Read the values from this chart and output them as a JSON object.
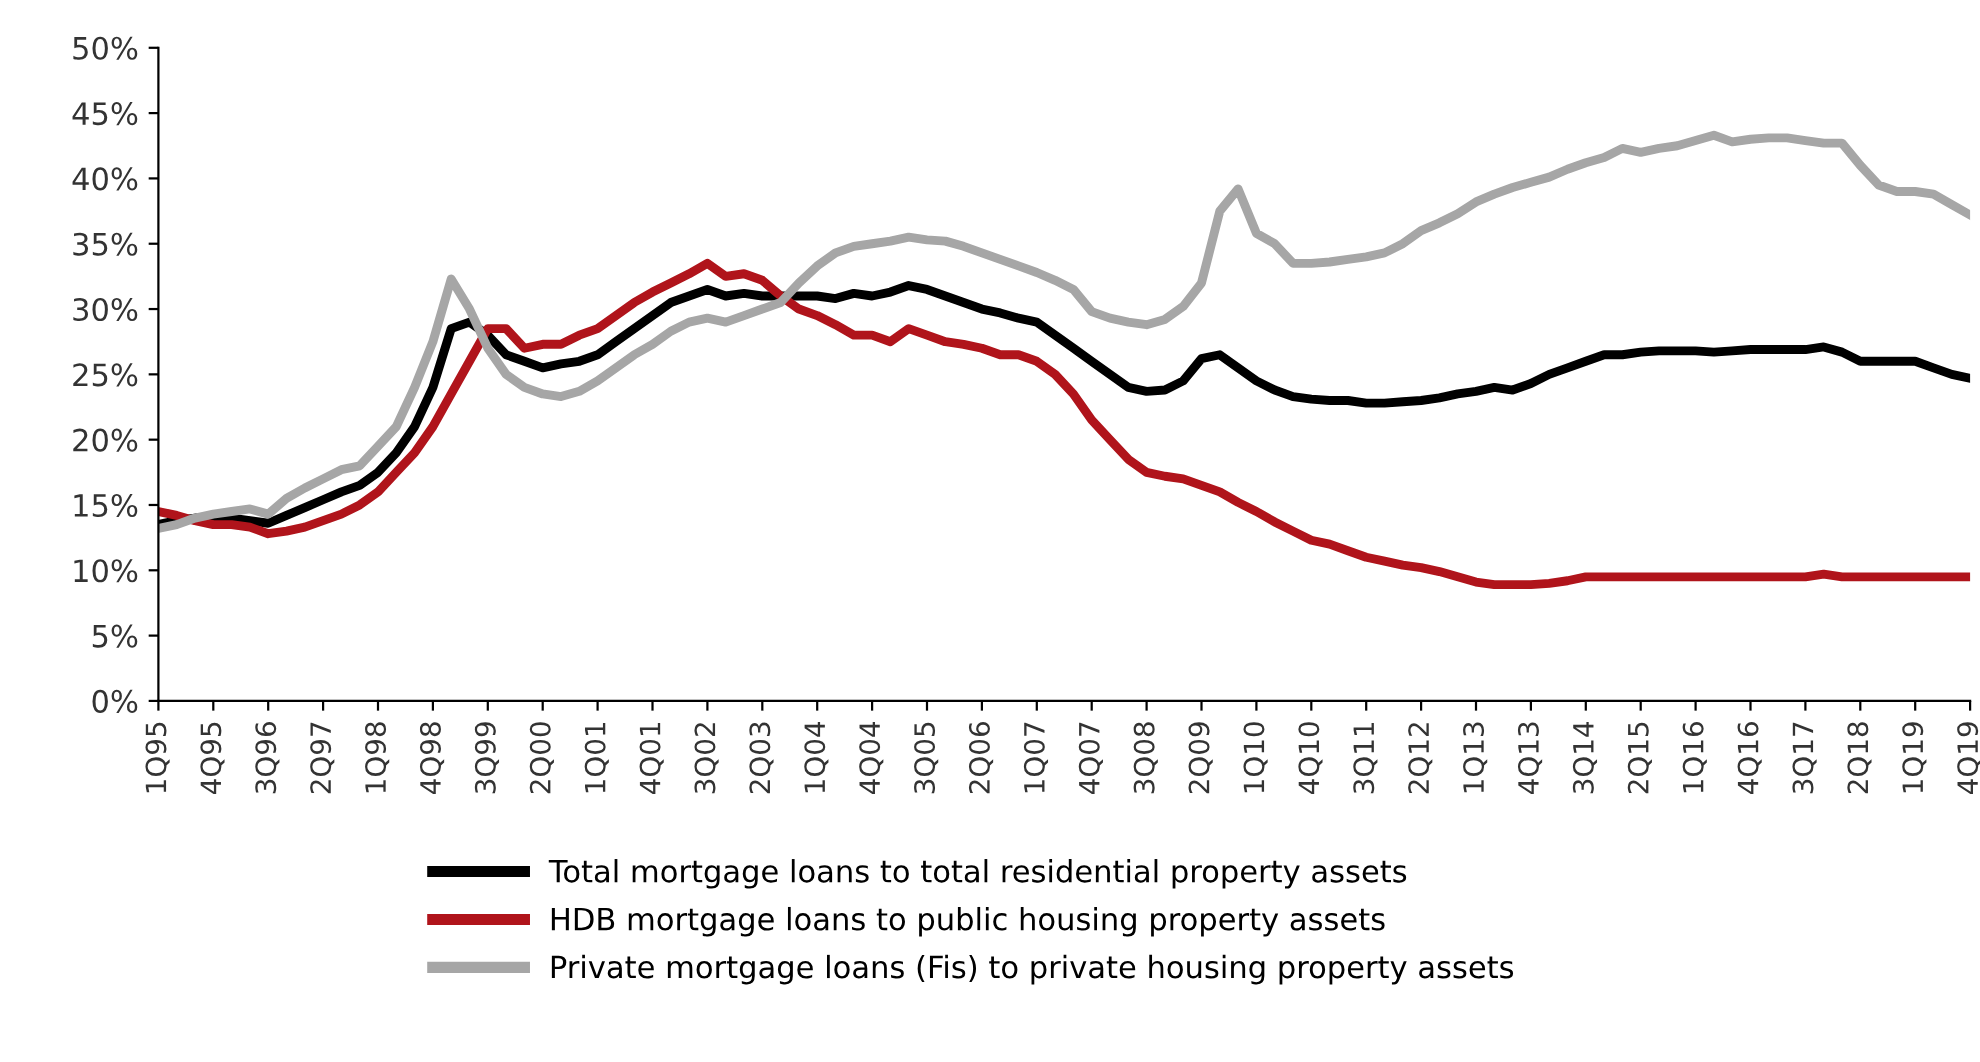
{
  "chart_data": {
    "type": "line",
    "categories": [
      "1Q95",
      null,
      null,
      "4Q95",
      null,
      null,
      "3Q96",
      null,
      null,
      "2Q97",
      null,
      null,
      "1Q98",
      null,
      null,
      "4Q98",
      null,
      null,
      "3Q99",
      null,
      null,
      "2Q00",
      null,
      null,
      "1Q01",
      null,
      null,
      "4Q01",
      null,
      null,
      "3Q02",
      null,
      null,
      "2Q03",
      null,
      null,
      "1Q04",
      null,
      null,
      "4Q04",
      null,
      null,
      "3Q05",
      null,
      null,
      "2Q06",
      null,
      null,
      "1Q07",
      null,
      null,
      "4Q07",
      null,
      null,
      "3Q08",
      null,
      null,
      "2Q09",
      null,
      null,
      "1Q10",
      null,
      null,
      "4Q10",
      null,
      null,
      "3Q11",
      null,
      null,
      "2Q12",
      null,
      null,
      "1Q13",
      null,
      null,
      "4Q13",
      null,
      null,
      "3Q14",
      null,
      null,
      "2Q15",
      null,
      null,
      "1Q16",
      null,
      null,
      "4Q16",
      null,
      null,
      "3Q17",
      null,
      null,
      "2Q18",
      null,
      null,
      "1Q19",
      null,
      null,
      "4Q19"
    ],
    "series": [
      {
        "name": "Total mortgage loans to total residential property assets",
        "color": "#000000",
        "values": [
          13.5,
          13.8,
          14.0,
          14.0,
          14.0,
          13.8,
          13.6,
          14.2,
          14.8,
          15.4,
          16.0,
          16.5,
          17.5,
          19.0,
          21.0,
          24.0,
          28.5,
          29.0,
          28.0,
          26.5,
          26.0,
          25.5,
          25.8,
          26.0,
          26.5,
          27.5,
          28.5,
          29.5,
          30.5,
          31.0,
          31.5,
          31.0,
          31.2,
          31.0,
          31.0,
          31.0,
          31.0,
          30.8,
          31.2,
          31.0,
          31.3,
          31.8,
          31.5,
          31.0,
          30.5,
          30.0,
          29.7,
          29.3,
          29.0,
          28.0,
          27.0,
          26.0,
          25.0,
          24.0,
          23.7,
          23.8,
          24.5,
          26.2,
          26.5,
          25.5,
          24.5,
          23.8,
          23.3,
          23.1,
          23.0,
          23.0,
          22.8,
          22.8,
          22.9,
          23.0,
          23.2,
          23.5,
          23.7,
          24.0,
          23.8,
          24.3,
          25.0,
          25.5,
          26.0,
          26.5,
          26.5,
          26.7,
          26.8,
          26.8,
          26.8,
          26.7,
          26.8,
          26.9,
          26.9,
          26.9,
          26.9,
          27.1,
          26.7,
          26.0,
          26.0,
          26.0,
          26.0,
          25.5,
          25.0,
          24.7
        ]
      },
      {
        "name": "HDB mortgage loans to public housing property assets",
        "color": "#b0141b",
        "values": [
          14.5,
          14.2,
          13.8,
          13.5,
          13.5,
          13.3,
          12.8,
          13.0,
          13.3,
          13.8,
          14.3,
          15.0,
          16.0,
          17.5,
          19.0,
          21.0,
          23.5,
          26.0,
          28.5,
          28.5,
          27.0,
          27.3,
          27.3,
          28.0,
          28.5,
          29.5,
          30.5,
          31.3,
          32.0,
          32.7,
          33.5,
          32.5,
          32.7,
          32.2,
          31.0,
          30.0,
          29.5,
          28.8,
          28.0,
          28.0,
          27.5,
          28.5,
          28.0,
          27.5,
          27.3,
          27.0,
          26.5,
          26.5,
          26.0,
          25.0,
          23.5,
          21.5,
          20.0,
          18.5,
          17.5,
          17.2,
          17.0,
          16.5,
          16.0,
          15.2,
          14.5,
          13.7,
          13.0,
          12.3,
          12.0,
          11.5,
          11.0,
          10.7,
          10.4,
          10.2,
          9.9,
          9.5,
          9.1,
          8.9,
          8.9,
          8.9,
          9.0,
          9.2,
          9.5,
          9.5,
          9.5,
          9.5,
          9.5,
          9.5,
          9.5,
          9.5,
          9.5,
          9.5,
          9.5,
          9.5,
          9.5,
          9.7,
          9.5,
          9.5,
          9.5,
          9.5,
          9.5,
          9.5,
          9.5,
          9.5
        ]
      },
      {
        "name": "Private mortgage loans (Fis) to private housing property assets",
        "color": "#a6a6a6",
        "values": [
          13.2,
          13.5,
          14.0,
          14.3,
          14.5,
          14.7,
          14.3,
          15.5,
          16.3,
          17.0,
          17.7,
          18.0,
          19.5,
          21.0,
          24.0,
          27.5,
          32.3,
          30.0,
          27.0,
          25.0,
          24.0,
          23.5,
          23.3,
          23.7,
          24.5,
          25.5,
          26.5,
          27.3,
          28.3,
          29.0,
          29.3,
          29.0,
          29.5,
          30.0,
          30.5,
          32.0,
          33.3,
          34.3,
          34.8,
          35.0,
          35.2,
          35.5,
          35.3,
          35.2,
          34.8,
          34.3,
          33.8,
          33.3,
          32.8,
          32.2,
          31.5,
          29.8,
          29.3,
          29.0,
          28.8,
          29.2,
          30.2,
          32.0,
          37.5,
          39.2,
          35.8,
          35.0,
          33.5,
          33.5,
          33.6,
          33.8,
          34.0,
          34.3,
          35.0,
          36.0,
          36.6,
          37.3,
          38.2,
          38.8,
          39.3,
          39.7,
          40.1,
          40.7,
          41.2,
          41.6,
          42.3,
          42.0,
          42.3,
          42.5,
          42.9,
          43.3,
          42.8,
          43.0,
          43.1,
          43.1,
          42.9,
          42.7,
          42.7,
          41.0,
          39.5,
          39.0,
          39.0,
          38.8,
          38.0,
          37.2
        ]
      }
    ],
    "ylim": [
      0,
      50
    ],
    "yticks": [
      {
        "value": 0,
        "label": "0%"
      },
      {
        "value": 5,
        "label": "5%"
      },
      {
        "value": 10,
        "label": "10%"
      },
      {
        "value": 15,
        "label": "15%"
      },
      {
        "value": 20,
        "label": "20%"
      },
      {
        "value": 25,
        "label": "25%"
      },
      {
        "value": 30,
        "label": "30%"
      },
      {
        "value": 35,
        "label": "35%"
      },
      {
        "value": 40,
        "label": "40%"
      },
      {
        "value": 45,
        "label": "45%"
      },
      {
        "value": 50,
        "label": "50%"
      }
    ],
    "legend": "bottom",
    "grid": false,
    "marker": "none",
    "line_style": "solid"
  }
}
